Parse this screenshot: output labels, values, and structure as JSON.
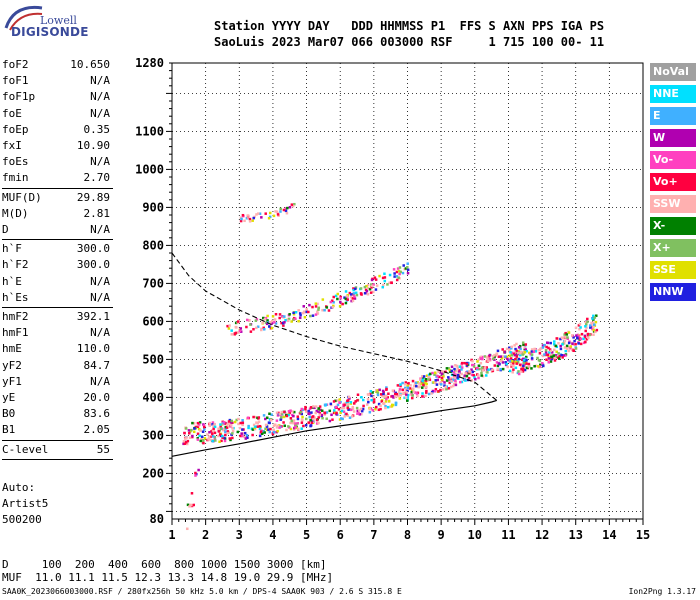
{
  "logo": {
    "line1": "Lowell",
    "line2": "DIGISONDE"
  },
  "header": {
    "line1": "Station YYYY DAY   DDD HHMMSS P1  FFS S AXN PPS IGA PS",
    "line2": "SaoLuis 2023 Mar07 066 003000 RSF     1 715 100 00- 11"
  },
  "params": {
    "g1": [
      {
        "k": "foF2",
        "v": "10.650"
      },
      {
        "k": "foF1",
        "v": "N/A"
      },
      {
        "k": "foF1p",
        "v": "N/A"
      },
      {
        "k": "foE",
        "v": "N/A"
      },
      {
        "k": "foEp",
        "v": "0.35"
      },
      {
        "k": "fxI",
        "v": "10.90"
      },
      {
        "k": "foEs",
        "v": "N/A"
      },
      {
        "k": "fmin",
        "v": "2.70"
      }
    ],
    "g2": [
      {
        "k": "MUF(D)",
        "v": "29.89"
      },
      {
        "k": "M(D)",
        "v": "2.81"
      },
      {
        "k": "D",
        "v": "N/A"
      }
    ],
    "g3": [
      {
        "k": "h`F",
        "v": "300.0"
      },
      {
        "k": "h`F2",
        "v": "300.0"
      },
      {
        "k": "h`E",
        "v": "N/A"
      },
      {
        "k": "h`Es",
        "v": "N/A"
      }
    ],
    "g4": [
      {
        "k": "hmF2",
        "v": "392.1"
      },
      {
        "k": "hmF1",
        "v": "N/A"
      },
      {
        "k": "hmE",
        "v": "110.0"
      },
      {
        "k": "yF2",
        "v": "84.7"
      },
      {
        "k": "yF1",
        "v": "N/A"
      },
      {
        "k": "yE",
        "v": "20.0"
      },
      {
        "k": "B0",
        "v": "83.6"
      },
      {
        "k": "B1",
        "v": "2.05"
      }
    ],
    "g5": [
      {
        "k": "C-level",
        "v": "55"
      }
    ]
  },
  "auto": {
    "line1": "Auto:",
    "line2": "Artist5",
    "line3": "500200"
  },
  "legend": [
    {
      "label": "NoVal",
      "color": "#a0a0a0"
    },
    {
      "label": "NNE",
      "color": "#00e0ff"
    },
    {
      "label": "E",
      "color": "#40b0ff"
    },
    {
      "label": "W",
      "color": "#b000b0"
    },
    {
      "label": "Vo-",
      "color": "#ff40c0"
    },
    {
      "label": "Vo+",
      "color": "#ff0040"
    },
    {
      "label": "SSW",
      "color": "#ffb0b0"
    },
    {
      "label": "X-",
      "color": "#008000"
    },
    {
      "label": "X+",
      "color": "#80c060"
    },
    {
      "label": "SSE",
      "color": "#e0e000"
    },
    {
      "label": "NNW",
      "color": "#2020e0"
    }
  ],
  "bottom": {
    "line1": "D     100  200  400  600  800 1000 1500 3000 [km]",
    "line2": "MUF  11.0 11.1 11.5 12.3 13.3 14.8 19.0 29.9 [MHz]"
  },
  "footer": {
    "left": "SAA0K_2023066003000.RSF / 280fx256h 50 kHz 5.0 km / DPS-4 SAA0K 903 / 2.6 S 315.8 E",
    "right": "Ion2Png 1.3.17"
  },
  "chart_data": {
    "type": "scatter",
    "xlim": [
      1,
      15
    ],
    "ylim": [
      80,
      1280
    ],
    "x_ticks": [
      1,
      2,
      3,
      4,
      5,
      6,
      7,
      8,
      9,
      10,
      11,
      12,
      13,
      14,
      15
    ],
    "y_ticks": [
      80,
      200,
      300,
      400,
      500,
      600,
      700,
      800,
      900,
      1000,
      1100,
      1280
    ],
    "y_tick_labels": [
      "80",
      "200",
      "300",
      "400",
      "500",
      "600",
      "700",
      "800",
      "900",
      "1000",
      "1100",
      "1280"
    ],
    "profile_solid": [
      [
        1.0,
        245
      ],
      [
        2.0,
        262
      ],
      [
        3.0,
        278
      ],
      [
        4.0,
        295
      ],
      [
        5.0,
        312
      ],
      [
        6.0,
        325
      ],
      [
        7.0,
        337
      ],
      [
        8.0,
        350
      ],
      [
        9.0,
        365
      ],
      [
        10.0,
        378
      ],
      [
        10.5,
        388
      ],
      [
        10.65,
        392
      ]
    ],
    "profile_dashed": [
      [
        1.0,
        780
      ],
      [
        1.5,
        720
      ],
      [
        2.0,
        680
      ],
      [
        2.5,
        655
      ],
      [
        3.0,
        630
      ],
      [
        4.0,
        590
      ],
      [
        5.0,
        560
      ],
      [
        6.0,
        535
      ],
      [
        7.0,
        515
      ],
      [
        8.0,
        495
      ],
      [
        9.0,
        470
      ],
      [
        10.0,
        440
      ],
      [
        10.65,
        392
      ]
    ],
    "traces": [
      {
        "name": "o-trace",
        "x0": 1.3,
        "x1": 11.5,
        "h0": 300,
        "h1": 520,
        "spread": 28,
        "n": 900
      },
      {
        "name": "x-trace",
        "x0": 11.0,
        "x1": 13.6,
        "h0": 480,
        "h1": 590,
        "spread": 30,
        "n": 260
      },
      {
        "name": "2F-trace",
        "x0": 2.6,
        "x1": 8.0,
        "h0": 580,
        "h1": 740,
        "spread": 18,
        "n": 220
      },
      {
        "name": "3F-trace",
        "x0": 3.0,
        "x1": 4.6,
        "h0": 870,
        "h1": 900,
        "spread": 10,
        "n": 40
      },
      {
        "name": "low-echoes",
        "x0": 1.4,
        "x1": 1.8,
        "h0": 90,
        "h1": 200,
        "spread": 50,
        "n": 12
      }
    ]
  }
}
